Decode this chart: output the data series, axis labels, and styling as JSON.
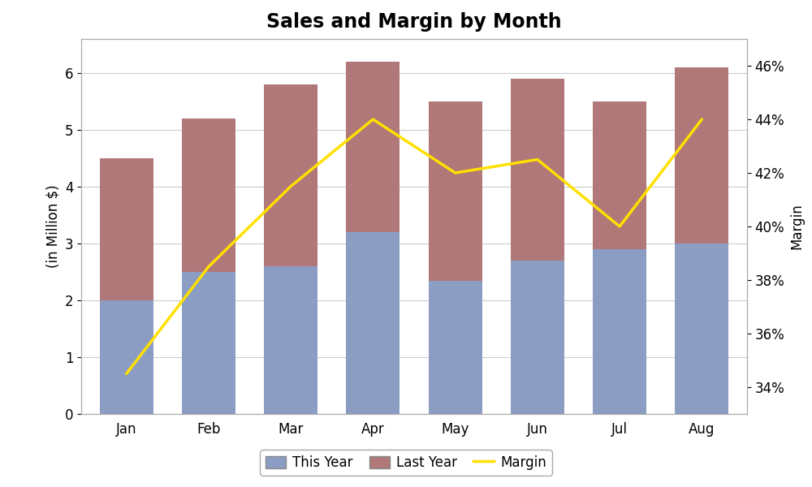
{
  "title": "Sales and Margin by Month",
  "months": [
    "Jan",
    "Feb",
    "Mar",
    "Apr",
    "May",
    "Jun",
    "Jul",
    "Aug"
  ],
  "this_year": [
    2.0,
    2.5,
    2.6,
    3.2,
    2.35,
    2.7,
    2.9,
    3.0
  ],
  "last_year_total": [
    4.5,
    5.2,
    5.8,
    6.2,
    5.5,
    5.9,
    5.5,
    6.1
  ],
  "margin": [
    34.5,
    38.5,
    41.5,
    44.0,
    42.0,
    42.5,
    40.0,
    44.0
  ],
  "bar_color_this_year": "#8B9DC3",
  "bar_color_last_year": "#B07878",
  "line_color": "#FFE000",
  "ylabel_left": "(in Million $)",
  "ylabel_right": "Margin",
  "ylim_left": [
    0,
    6.6
  ],
  "ylim_right": [
    33,
    47
  ],
  "title_fontsize": 17,
  "axis_fontsize": 12,
  "tick_fontsize": 12,
  "legend_fontsize": 12,
  "background_color": "#FFFFFF",
  "plot_bg_color": "#F5F5F5",
  "grid_color": "#CCCCCC",
  "bar_width": 0.65,
  "line_width": 2.5
}
